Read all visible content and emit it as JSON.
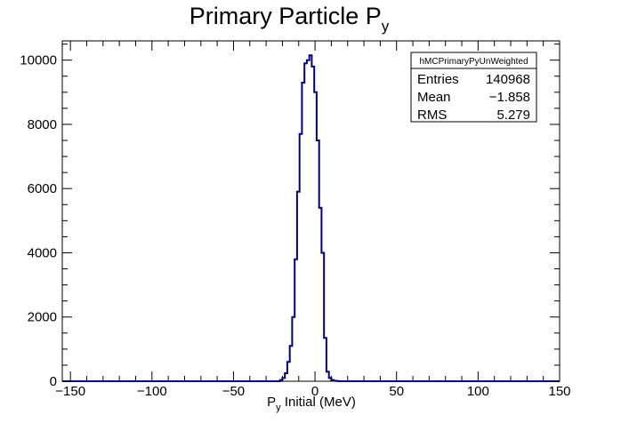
{
  "chart_data": {
    "type": "histogram",
    "title": {
      "main": "Primary Particle P",
      "sub": "y"
    },
    "xlabel": {
      "main": "P",
      "sub": "y",
      "rest": " Initial (MeV)"
    },
    "ylabel": "",
    "xlim": [
      -155,
      150
    ],
    "ylim": [
      0,
      10600
    ],
    "x_ticks": [
      -150,
      -100,
      -50,
      0,
      50,
      100,
      150
    ],
    "x_tick_labels": [
      "−150",
      "−100",
      "−50",
      "0",
      "50",
      "100",
      "150"
    ],
    "y_ticks": [
      0,
      2000,
      4000,
      6000,
      8000,
      10000
    ],
    "y_tick_labels": [
      "0",
      "2000",
      "4000",
      "6000",
      "8000",
      "10000"
    ],
    "grid": false,
    "line_color": "#000080",
    "bin_width": 1.5,
    "bin_edges": [
      -155,
      -21.5,
      -20,
      -18.5,
      -17,
      -15.5,
      -14,
      -12.5,
      -11,
      -9.5,
      -8,
      -6.5,
      -5,
      -3.5,
      -2,
      -0.5,
      1,
      2.5,
      4,
      5.5,
      7,
      8.5,
      10,
      11.5,
      13,
      14.5,
      16,
      150
    ],
    "counts": [
      0,
      40,
      100,
      250,
      600,
      1100,
      2000,
      3800,
      5900,
      7700,
      9300,
      9900,
      10000,
      10150,
      9800,
      9000,
      7500,
      5400,
      4000,
      1350,
      300,
      100,
      40,
      15,
      5,
      0,
      0
    ],
    "stats_box": {
      "name": "hMCPrimaryPyUnWeighted",
      "rows": [
        {
          "label": "Entries",
          "value": "140968"
        },
        {
          "label": "Mean",
          "value": "−1.858"
        },
        {
          "label": "RMS",
          "value": "5.279"
        }
      ]
    }
  }
}
